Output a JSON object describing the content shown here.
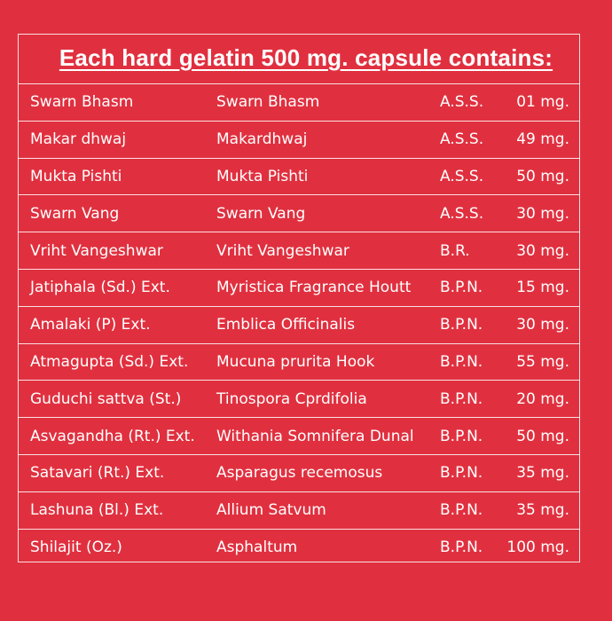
{
  "title": "Each hard gelatin 500 mg. capsule contains:",
  "ingredients": [
    {
      "name": "Swarn Bhasm",
      "botanical": "Swarn Bhasm",
      "ref": "A.S.S.",
      "qty": "01 mg."
    },
    {
      "name": "Makar dhwaj",
      "botanical": "Makardhwaj",
      "ref": "A.S.S.",
      "qty": "49 mg."
    },
    {
      "name": "Mukta Pishti",
      "botanical": "Mukta Pishti",
      "ref": "A.S.S.",
      "qty": "50 mg."
    },
    {
      "name": "Swarn Vang",
      "botanical": "Swarn Vang",
      "ref": "A.S.S.",
      "qty": "30 mg."
    },
    {
      "name": "Vriht Vangeshwar",
      "botanical": "Vriht Vangeshwar",
      "ref": "B.R.",
      "qty": "30 mg."
    },
    {
      "name": "Jatiphala (Sd.) Ext.",
      "botanical": "Myristica Fragrance Houtt",
      "ref": "B.P.N.",
      "qty": "15 mg."
    },
    {
      "name": "Amalaki  (P) Ext.",
      "botanical": "Emblica Officinalis",
      "ref": "B.P.N.",
      "qty": "30 mg."
    },
    {
      "name": "Atmagupta (Sd.) Ext.",
      "botanical": "Mucuna prurita Hook",
      "ref": "B.P.N.",
      "qty": "55 mg."
    },
    {
      "name": "Guduchi sattva (St.)",
      "botanical": "Tinospora Cprdifolia",
      "ref": "B.P.N.",
      "qty": "20 mg."
    },
    {
      "name": "Asvagandha (Rt.) Ext.",
      "botanical": "Withania Somnifera Dunal",
      "ref": "B.P.N.",
      "qty": "50 mg."
    },
    {
      "name": "Satavari (Rt.) Ext.",
      "botanical": "Asparagus recemosus",
      "ref": "B.P.N.",
      "qty": "35 mg."
    },
    {
      "name": "Lashuna (Bl.) Ext.",
      "botanical": "Allium Satvum",
      "ref": "B.P.N.",
      "qty": "35 mg."
    },
    {
      "name": "Shilajit (Oz.)",
      "botanical": "Asphaltum",
      "ref": "B.P.N.",
      "qty": "100 mg."
    }
  ]
}
